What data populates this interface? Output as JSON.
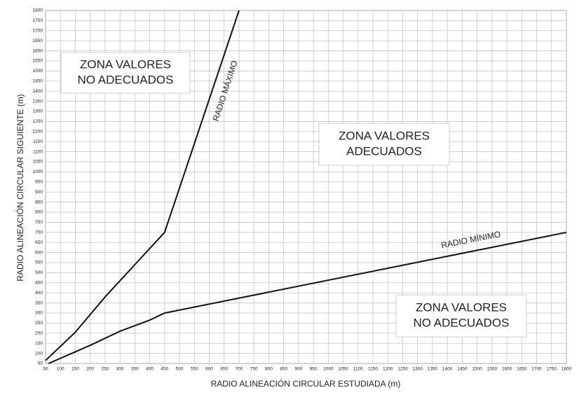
{
  "chart_data": {
    "type": "line",
    "x_label": "RADIO ALINEACIÓN CIRCULAR ESTUDIADA  (m)",
    "y_label": "RADIO ALINEACIÓN CIRCULAR SIGUIENTE  (m)",
    "xlim": [
      50,
      1800
    ],
    "ylim": [
      50,
      1800
    ],
    "xticks": [
      50,
      100,
      150,
      200,
      250,
      300,
      350,
      400,
      450,
      500,
      550,
      600,
      650,
      700,
      750,
      800,
      850,
      900,
      950,
      1000,
      1050,
      1100,
      1150,
      1200,
      1250,
      1300,
      1350,
      1400,
      1450,
      1500,
      1550,
      1600,
      1650,
      1700,
      1750,
      1800
    ],
    "yticks": [
      50,
      100,
      150,
      200,
      250,
      300,
      350,
      400,
      450,
      500,
      550,
      600,
      650,
      700,
      750,
      800,
      850,
      900,
      950,
      1000,
      1050,
      1100,
      1150,
      1200,
      1250,
      1300,
      1350,
      1400,
      1450,
      1500,
      1550,
      1600,
      1650,
      1700,
      1750,
      1800
    ],
    "grid": true,
    "series": [
      {
        "name": "RADIO MÁXIMO",
        "color": "#111111",
        "x": [
          50,
          150,
          250,
          350,
          450,
          700
        ],
        "values": [
          65,
          205,
          380,
          540,
          700,
          1800
        ]
      },
      {
        "name": "RADIO MÍNIMO",
        "color": "#111111",
        "x": [
          60,
          200,
          300,
          400,
          450,
          1800
        ],
        "values": [
          50,
          140,
          210,
          265,
          300,
          700
        ]
      }
    ],
    "annotations": [
      {
        "lines": [
          "ZONA VALORES",
          "NO ADECUADOS"
        ]
      },
      {
        "lines": [
          "ZONA VALORES",
          "ADECUADOS"
        ]
      },
      {
        "lines": [
          "ZONA VALORES",
          "NO ADECUADOS"
        ]
      }
    ]
  }
}
